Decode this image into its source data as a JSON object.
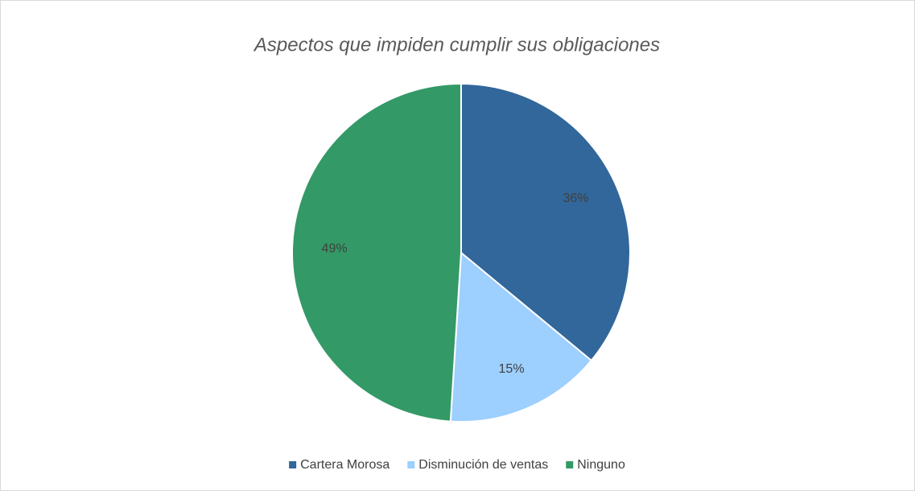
{
  "chart_data": {
    "type": "pie",
    "title": "Aspectos que impiden cumplir sus obligaciones",
    "categories": [
      "Cartera Morosa",
      "Disminución de ventas",
      "Ninguno"
    ],
    "values": [
      36,
      15,
      49
    ],
    "value_labels": [
      "36%",
      "15%",
      "49%"
    ],
    "colors": [
      "#31679a",
      "#9dcfff",
      "#339966"
    ],
    "legend": "bottom"
  }
}
